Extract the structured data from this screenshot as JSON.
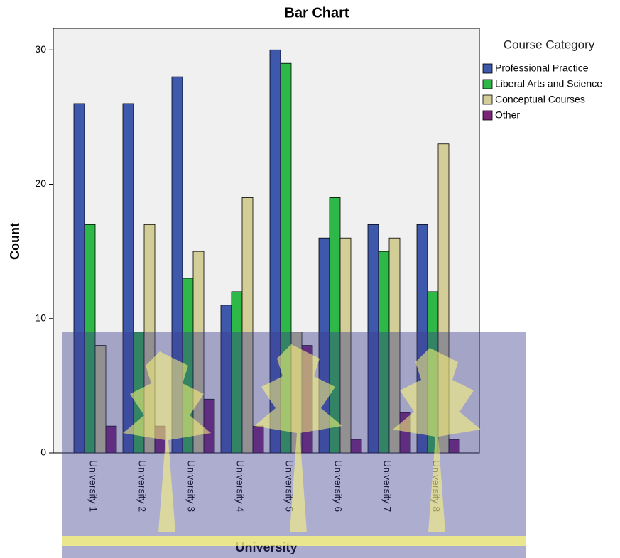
{
  "chart_data": {
    "type": "bar",
    "title": "Bar Chart",
    "x_label": "University",
    "y_label": "Count",
    "legend_title": "Course Category",
    "categories": [
      "University 1",
      "University 2",
      "University 3",
      "University 4",
      "University 5",
      "University 6",
      "University 7",
      "University 8"
    ],
    "series": [
      {
        "name": "Professional Practice",
        "color": "#3e58ac",
        "values": [
          26,
          26,
          28,
          11,
          30,
          16,
          17,
          17
        ]
      },
      {
        "name": "Liberal Arts and Science",
        "color": "#2eb848",
        "values": [
          17,
          9,
          13,
          12,
          29,
          19,
          15,
          12
        ]
      },
      {
        "name": "Conceptual Courses",
        "color": "#d3ce97",
        "values": [
          8,
          17,
          15,
          19,
          9,
          16,
          16,
          23
        ]
      },
      {
        "name": "Other",
        "color": "#7c2478",
        "values": [
          2,
          2,
          4,
          2,
          8,
          1,
          3,
          1
        ]
      }
    ],
    "ylim": [
      0,
      31.6
    ],
    "yticks": [
      0,
      10,
      20,
      30
    ],
    "grid": false,
    "legend": "right"
  }
}
